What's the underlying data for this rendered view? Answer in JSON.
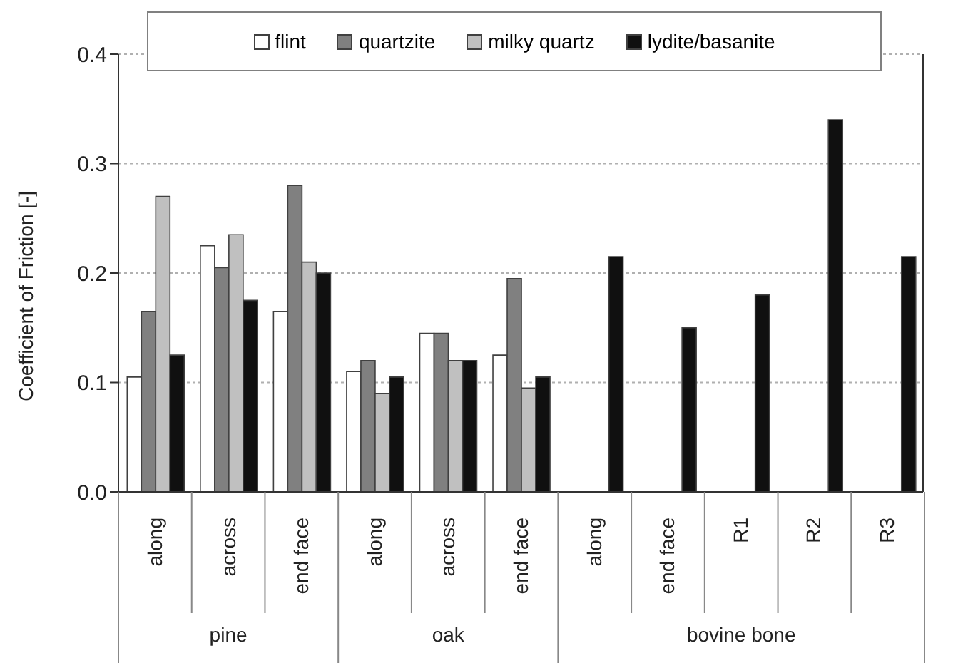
{
  "chart_data": {
    "type": "bar",
    "ylabel": "Coefficient of Friction [-]",
    "categories": [
      "along",
      "across",
      "end face",
      "along",
      "across",
      "end face",
      "along",
      "end face",
      "R1",
      "R2",
      "R3"
    ],
    "series": [
      {
        "name": "flint",
        "color": "#ffffff",
        "values": [
          0.105,
          0.225,
          0.165,
          0.11,
          0.145,
          0.125,
          null,
          null,
          null,
          null,
          null
        ]
      },
      {
        "name": "quartzite",
        "color": "#808080",
        "values": [
          0.165,
          0.205,
          0.28,
          0.12,
          0.145,
          0.195,
          null,
          null,
          null,
          null,
          null
        ]
      },
      {
        "name": "milky quartz",
        "color": "#c0c0c0",
        "values": [
          0.27,
          0.235,
          0.21,
          0.09,
          0.12,
          0.095,
          null,
          null,
          null,
          null,
          null
        ]
      },
      {
        "name": "lydite/basanite",
        "color": "#101010",
        "values": [
          0.125,
          0.175,
          0.2,
          0.105,
          0.12,
          0.105,
          0.215,
          0.15,
          0.18,
          0.34,
          0.215
        ]
      }
    ],
    "ylim": [
      0,
      0.4
    ],
    "yticks": [
      {
        "value": 0,
        "label": "0.0"
      },
      0.1,
      0.2,
      0.3,
      0.4
    ],
    "grid": "y",
    "legend": "top",
    "annotations": [
      "pine",
      "oak",
      "bovine bone"
    ]
  }
}
